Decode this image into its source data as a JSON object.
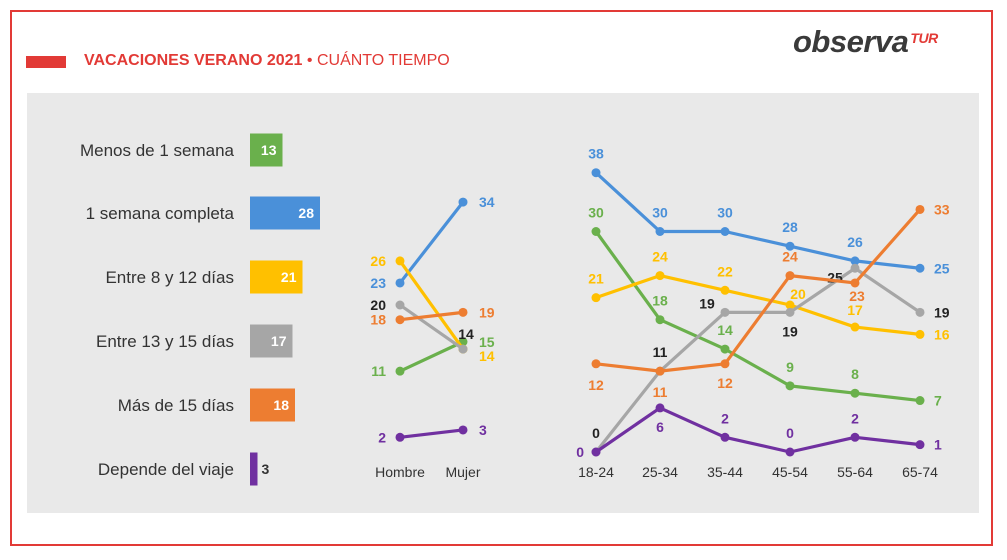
{
  "header": {
    "title_main": "VACACIONES VERANO 2021",
    "title_sep": "•",
    "title_sub": "CUÁNTO TIEMPO",
    "logo_main": "observa",
    "logo_tur": "TUR"
  },
  "chart_data": [
    {
      "type": "bar",
      "orientation": "horizontal",
      "categories": [
        "Menos de 1 semana",
        "1 semana completa",
        "Entre 8 y 12 días",
        "Entre 13 y 15 días",
        "Más de 15 días",
        "Depende del viaje"
      ],
      "values": [
        13,
        28,
        21,
        17,
        18,
        3
      ],
      "colors": [
        "#6ab04c",
        "#4a90d9",
        "#ffc000",
        "#a6a6a6",
        "#ed7d31",
        "#7030a0"
      ]
    },
    {
      "type": "line",
      "x": [
        "Hombre",
        "Mujer"
      ],
      "ylim": [
        0,
        40
      ],
      "series": [
        {
          "key": "menos1",
          "values": [
            11,
            15
          ],
          "color": "#6ab04c"
        },
        {
          "key": "semana1",
          "values": [
            23,
            34
          ],
          "color": "#4a90d9"
        },
        {
          "key": "d8_12",
          "values": [
            26,
            14
          ],
          "color": "#ffc000"
        },
        {
          "key": "d13_15",
          "values": [
            20,
            14
          ],
          "color": "#a6a6a6"
        },
        {
          "key": "mas15",
          "values": [
            18,
            19
          ],
          "color": "#ed7d31"
        },
        {
          "key": "depende",
          "values": [
            2,
            3
          ],
          "color": "#7030a0"
        }
      ]
    },
    {
      "type": "line",
      "x": [
        "18-24",
        "25-34",
        "35-44",
        "45-54",
        "55-64",
        "65-74"
      ],
      "ylim": [
        0,
        40
      ],
      "series": [
        {
          "key": "menos1",
          "values": [
            30,
            18,
            14,
            9,
            8,
            7
          ],
          "color": "#6ab04c"
        },
        {
          "key": "semana1",
          "values": [
            38,
            30,
            30,
            28,
            26,
            25
          ],
          "color": "#4a90d9"
        },
        {
          "key": "d8_12",
          "values": [
            21,
            24,
            22,
            20,
            17,
            16
          ],
          "color": "#ffc000"
        },
        {
          "key": "d13_15",
          "values": [
            0,
            11,
            19,
            19,
            25,
            19
          ],
          "color": "#a6a6a6"
        },
        {
          "key": "mas15",
          "values": [
            12,
            11,
            12,
            24,
            23,
            33
          ],
          "color": "#ed7d31"
        },
        {
          "key": "depende",
          "values": [
            0,
            6,
            2,
            0,
            2,
            1
          ],
          "color": "#7030a0"
        }
      ]
    }
  ]
}
